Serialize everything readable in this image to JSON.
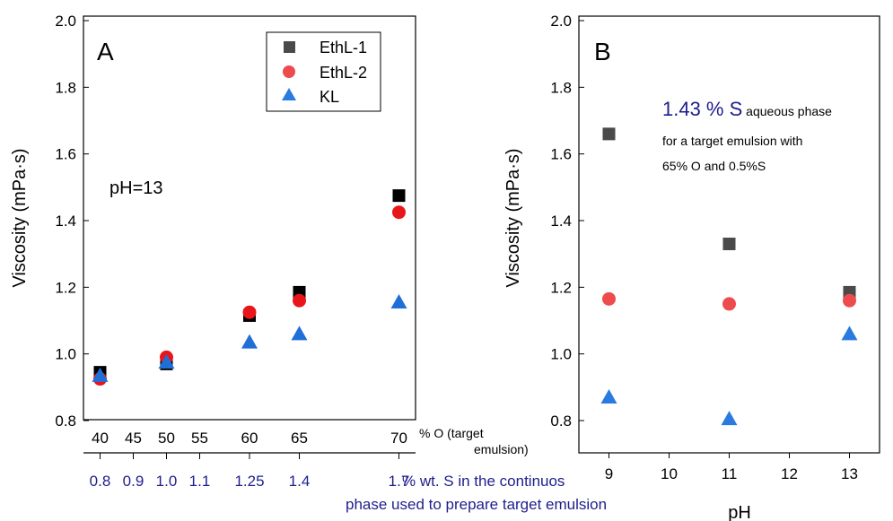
{
  "chart_data": [
    {
      "type": "scatter",
      "panel_letter": "A",
      "ylabel": "Viscosity (mPa·s)",
      "ylim": [
        0.7,
        2.0
      ],
      "yticks": [
        "0.8",
        "1.0",
        "1.2",
        "1.4",
        "1.6",
        "1.8",
        "2.0"
      ],
      "xlim": [
        0.75,
        1.75
      ],
      "x_axis_main": {
        "label_line1": "% wt. S in the continuos",
        "label_line2": "phase used to prepare target emulsion",
        "ticks": [
          {
            "x": 0.8,
            "label": "0.8"
          },
          {
            "x": 0.9,
            "label": "0.9"
          },
          {
            "x": 1.0,
            "label": "1.0"
          },
          {
            "x": 1.1,
            "label": "1.1"
          },
          {
            "x": 1.25,
            "label": "1.25"
          },
          {
            "x": 1.4,
            "label": "1.4"
          },
          {
            "x": 1.7,
            "label": "1.7"
          }
        ]
      },
      "x_axis_secondary": {
        "label_line1": "% O (target",
        "label_line2": "emulsion)",
        "ticks": [
          {
            "x": 0.8,
            "label": "40"
          },
          {
            "x": 0.9,
            "label": "45"
          },
          {
            "x": 1.0,
            "label": "50"
          },
          {
            "x": 1.1,
            "label": "55"
          },
          {
            "x": 1.25,
            "label": "60"
          },
          {
            "x": 1.4,
            "label": "65"
          },
          {
            "x": 1.7,
            "label": "70"
          }
        ]
      },
      "annotation": "pH=13",
      "legend": {
        "placement": "top-right"
      },
      "series": [
        {
          "name": "EthL-1",
          "marker": "square",
          "color": "#000000",
          "x": [
            0.8,
            1.0,
            1.25,
            1.4,
            1.7
          ],
          "y": [
            0.945,
            0.97,
            1.115,
            1.185,
            1.475
          ]
        },
        {
          "name": "EthL-2",
          "marker": "circle",
          "color": "#e8161b",
          "x": [
            0.8,
            1.0,
            1.25,
            1.4,
            1.7
          ],
          "y": [
            0.925,
            0.99,
            1.125,
            1.16,
            1.425
          ]
        },
        {
          "name": "KL",
          "marker": "triangle",
          "color": "#1f6fd8",
          "x": [
            0.8,
            1.0,
            1.25,
            1.4,
            1.7
          ],
          "y": [
            0.935,
            0.975,
            1.035,
            1.06,
            1.155
          ]
        }
      ]
    },
    {
      "type": "scatter",
      "panel_letter": "B",
      "ylabel": "Viscosity (mPa·s)",
      "xlabel": "pH",
      "ylim": [
        0.7,
        2.0
      ],
      "yticks": [
        "0.8",
        "1.0",
        "1.2",
        "1.4",
        "1.6",
        "1.8",
        "2.0"
      ],
      "xlim": [
        8.5,
        13.5
      ],
      "xticks": [
        9,
        10,
        11,
        12,
        13
      ],
      "annotation_big": "1.43 % S",
      "annotation_small1": " aqueous phase",
      "annotation_line2": "for a target emulsion with",
      "annotation_line3": "65% O and 0.5%S",
      "series": [
        {
          "name": "EthL-1",
          "marker": "square",
          "color": "#4a4a4a",
          "x": [
            9,
            11,
            13
          ],
          "y": [
            1.66,
            1.33,
            1.185
          ]
        },
        {
          "name": "EthL-2",
          "marker": "circle",
          "color": "#ee4b4e",
          "x": [
            9,
            11,
            13
          ],
          "y": [
            1.165,
            1.15,
            1.16
          ]
        },
        {
          "name": "KL",
          "marker": "triangle",
          "color": "#2a7ae0",
          "x": [
            9,
            11,
            13
          ],
          "y": [
            0.87,
            0.805,
            1.06
          ]
        }
      ]
    }
  ]
}
